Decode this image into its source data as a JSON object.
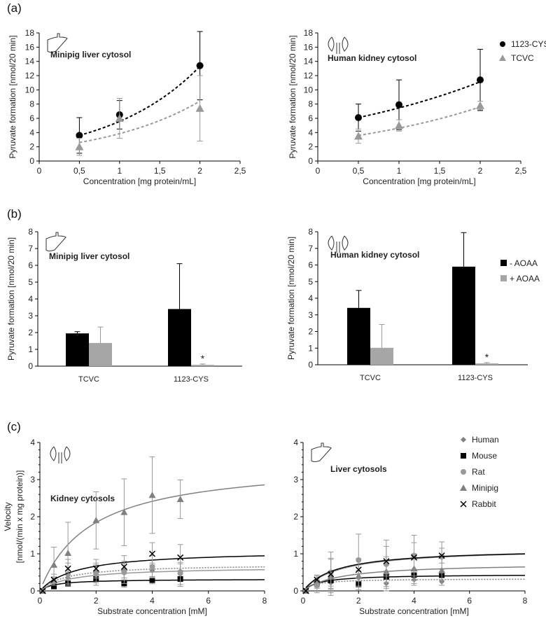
{
  "panels": [
    "(a)",
    "(b)",
    "(c)"
  ],
  "colors": {
    "black": "#000000",
    "grey": "#999999",
    "lightgrey": "#a6a6a6"
  },
  "chart_data": [
    {
      "id": "a-liver",
      "type": "scatter",
      "title": "Minipig liver cytosol",
      "icon": "liver",
      "xlabel": "Concentration [mg protein/mL]",
      "ylabel": "Pyruvate formation [nmol/20 min]",
      "xlim": [
        0,
        2.5
      ],
      "xticks": [
        "0",
        "0,5",
        "1",
        "1,5",
        "2",
        "2,5"
      ],
      "xtickvals": [
        0,
        0.5,
        1,
        1.5,
        2,
        2.5
      ],
      "ylim": [
        0,
        18
      ],
      "yticks": [
        0,
        2,
        4,
        6,
        8,
        10,
        12,
        14,
        16,
        18
      ],
      "series": [
        {
          "name": "1123-CYS",
          "marker": "circle",
          "color": "#000000",
          "x": [
            0.5,
            1,
            2
          ],
          "y": [
            3.6,
            6.5,
            13.4
          ],
          "err": [
            2.5,
            2.0,
            4.8
          ],
          "fit": {
            "kind": "exp",
            "a": 2.33,
            "b": 0.871,
            "from": 0.5,
            "to": 2
          }
        },
        {
          "name": "TCVC",
          "marker": "triangle",
          "color": "#999999",
          "x": [
            0.5,
            1,
            2
          ],
          "y": [
            2.0,
            6.0,
            7.4
          ],
          "err": [
            1.2,
            2.8,
            4.6
          ],
          "fit": {
            "kind": "exp",
            "a": 1.76,
            "b": 0.782,
            "from": 0.5,
            "to": 2
          }
        }
      ]
    },
    {
      "id": "a-kidney",
      "type": "scatter",
      "title": "Human kidney cytosol",
      "icon": "kidney",
      "xlabel": "Concentration  [mg protein/mL]",
      "ylabel": "Pyruvate formation [nmol/20 min]",
      "xlim": [
        0,
        2.5
      ],
      "xticks": [
        "0",
        "0,5",
        "1",
        "1,5",
        "2",
        "2,5"
      ],
      "xtickvals": [
        0,
        0.5,
        1,
        1.5,
        2,
        2.5
      ],
      "ylim": [
        0,
        18
      ],
      "yticks": [
        0,
        2,
        4,
        6,
        8,
        10,
        12,
        14,
        16,
        18
      ],
      "legend": "top-right",
      "series": [
        {
          "name": "1123-CYS",
          "marker": "circle",
          "color": "#000000",
          "x": [
            0.5,
            1,
            2
          ],
          "y": [
            6.1,
            7.9,
            11.4
          ],
          "err": [
            1.9,
            3.5,
            4.3
          ],
          "fit": {
            "kind": "exp",
            "a": 5.0,
            "b": 0.4,
            "from": 0.5,
            "to": 2
          }
        },
        {
          "name": "TCVC",
          "marker": "triangle",
          "color": "#999999",
          "x": [
            0.5,
            1,
            2
          ],
          "y": [
            3.5,
            5.0,
            7.8
          ],
          "err": [
            1.0,
            0.8,
            0.6
          ],
          "fit": {
            "kind": "exp",
            "a": 2.81,
            "b": 0.498,
            "from": 0.5,
            "to": 2
          }
        }
      ]
    },
    {
      "id": "b-liver",
      "type": "bar",
      "title": "Minipig liver cytosol",
      "icon": "liver",
      "ylabel": "Pyruvate formation [nmol/20 min]",
      "categories": [
        "TCVC",
        "1123-CYS"
      ],
      "ylim": [
        0,
        8
      ],
      "yticks": [
        0,
        1,
        2,
        3,
        4,
        5,
        6,
        7,
        8
      ],
      "series": [
        {
          "name": "- AOAA",
          "color": "#000000",
          "values": [
            1.95,
            3.4
          ],
          "err": [
            0.1,
            2.7
          ]
        },
        {
          "name": "+ AOAA",
          "color": "#a6a6a6",
          "values": [
            1.38,
            0.08
          ],
          "err": [
            0.95,
            0.05
          ]
        }
      ],
      "annotations": [
        {
          "category": 1,
          "series": 1,
          "text": "*"
        }
      ]
    },
    {
      "id": "b-kidney",
      "type": "bar",
      "title": "Human kidney cytosol",
      "icon": "kidney",
      "ylabel": "Pyruvate formation [nmol/20 min]",
      "categories": [
        "TCVC",
        "1123-CYS"
      ],
      "ylim": [
        0,
        8
      ],
      "yticks": [
        0,
        1,
        2,
        3,
        4,
        5,
        6,
        7,
        8
      ],
      "legend": "right",
      "series": [
        {
          "name": "- AOAA",
          "color": "#000000",
          "values": [
            3.42,
            5.9
          ],
          "err": [
            1.05,
            2.05
          ]
        },
        {
          "name": "+ AOAA",
          "color": "#a6a6a6",
          "values": [
            1.02,
            0.08
          ],
          "err": [
            1.4,
            0.05
          ]
        }
      ],
      "annotations": [
        {
          "category": 1,
          "series": 1,
          "text": "*"
        }
      ]
    },
    {
      "id": "c-kidney",
      "type": "scatter",
      "title": "Kidney cytosols",
      "icon": "kidney",
      "xlabel": "Substrate concentration [mM]",
      "ylabel": "Velocity",
      "ylabel2": "[nmol/(min x mg protein)]",
      "xlim": [
        0,
        8
      ],
      "xticks": [
        "0",
        "2",
        "4",
        "6",
        "8"
      ],
      "xtickvals": [
        0,
        2,
        4,
        6,
        8
      ],
      "ylim": [
        0,
        4
      ],
      "yticks": [
        0,
        1,
        2,
        3,
        4
      ],
      "series": [
        {
          "name": "Human",
          "marker": "diamond",
          "color": "#808080",
          "x": [
            0.1,
            0.5,
            1,
            2,
            3,
            4,
            5
          ],
          "y": [
            0,
            0.28,
            0.35,
            0.5,
            0.55,
            0.55,
            0.53
          ],
          "err": [
            0,
            0.1,
            0.15,
            0.2,
            0.2,
            0.2,
            0.2
          ],
          "fit": {
            "kind": "mm",
            "vmax": 0.72,
            "km": 0.9,
            "dash": true
          }
        },
        {
          "name": "Mouse",
          "marker": "square",
          "color": "#000000",
          "x": [
            0.1,
            0.5,
            1,
            2,
            3,
            4,
            5
          ],
          "y": [
            0,
            0.12,
            0.2,
            0.32,
            0.2,
            0.29,
            0.32
          ],
          "err": [
            0,
            0.05,
            0.08,
            0.1,
            0.1,
            0.1,
            0.2
          ],
          "fit": {
            "kind": "mm",
            "vmax": 0.32,
            "km": 0.5
          }
        },
        {
          "name": "Rat",
          "marker": "circle",
          "color": "#999999",
          "x": [
            0.1,
            0.5,
            1,
            2,
            3,
            4,
            5
          ],
          "y": [
            0,
            0.25,
            0.45,
            0.45,
            0.5,
            0.65,
            0.47
          ],
          "err": [
            0,
            0.1,
            0.3,
            0.3,
            0.3,
            0.3,
            0.3
          ],
          "fit": {
            "kind": "mm",
            "vmax": 0.65,
            "km": 1.1
          }
        },
        {
          "name": "Minipig",
          "marker": "triangle",
          "color": "#808080",
          "x": [
            0.1,
            0.5,
            1,
            2,
            3,
            4,
            5
          ],
          "y": [
            0,
            0.7,
            1.02,
            1.9,
            2.12,
            2.58,
            2.47
          ],
          "err": [
            0,
            0.48,
            0.83,
            0.77,
            0.9,
            1.03,
            0.52
          ],
          "fit": {
            "kind": "mm",
            "vmax": 3.5,
            "km": 1.8
          }
        },
        {
          "name": "Rabbit",
          "marker": "cross",
          "color": "#000000",
          "x": [
            0.1,
            0.5,
            1,
            2,
            3,
            4,
            5
          ],
          "y": [
            0,
            0.3,
            0.6,
            0.6,
            0.65,
            1.0,
            0.9
          ],
          "err": [
            0,
            0.15,
            0.25,
            0.25,
            0.3,
            0.3,
            0.35
          ],
          "fit": {
            "kind": "mm",
            "vmax": 1.1,
            "km": 1.3
          }
        }
      ]
    },
    {
      "id": "c-liver",
      "type": "scatter",
      "title": "Liver cytosols",
      "icon": "liver",
      "xlabel": "Substrate concentration [mM]",
      "xlim": [
        0,
        8
      ],
      "xticks": [
        "0",
        "2",
        "4",
        "6",
        "8"
      ],
      "xtickvals": [
        0,
        2,
        4,
        6,
        8
      ],
      "ylim": [
        0,
        4
      ],
      "yticks": [
        0,
        1,
        2,
        3,
        4
      ],
      "legend": "top-right",
      "series": [
        {
          "name": "Human",
          "marker": "diamond",
          "color": "#808080",
          "x": [
            0.1,
            0.5,
            1,
            2,
            3,
            4,
            5
          ],
          "y": [
            0,
            0.17,
            0.22,
            0.35,
            0.2,
            0.3,
            0.25
          ],
          "err": [
            0,
            0.1,
            0.15,
            0.2,
            0.2,
            0.15,
            0.1
          ],
          "fit": {
            "kind": "mm",
            "vmax": 0.33,
            "km": 0.4,
            "dash": true
          }
        },
        {
          "name": "Mouse",
          "marker": "square",
          "color": "#000000",
          "x": [
            0.1,
            0.5,
            1,
            2,
            3,
            4,
            5
          ],
          "y": [
            0,
            0.2,
            0.28,
            0.18,
            0.38,
            0.43,
            0.43
          ],
          "err": [
            0,
            0.1,
            0.15,
            0.15,
            0.15,
            0.15,
            0.15
          ],
          "fit": {
            "kind": "mm",
            "vmax": 0.45,
            "km": 0.6
          }
        },
        {
          "name": "Rat",
          "marker": "circle",
          "color": "#999999",
          "x": [
            0.1,
            0.5,
            1,
            2,
            3,
            4,
            5
          ],
          "y": [
            0,
            0.15,
            0.5,
            0.83,
            0.72,
            0.95,
            0.92
          ],
          "err": [
            0,
            0.2,
            0.55,
            0.7,
            0.65,
            0.55,
            0.4
          ],
          "fit": {
            "kind": "mm",
            "vmax": 1.15,
            "km": 1.3
          }
        },
        {
          "name": "Minipig",
          "marker": "triangle",
          "color": "#808080",
          "x": [
            0.1,
            0.5,
            1,
            2,
            3,
            4,
            5
          ],
          "y": [
            0,
            0.28,
            0.38,
            0.4,
            0.52,
            0.6,
            0.55
          ],
          "err": [
            0,
            0.15,
            0.5,
            0.3,
            0.4,
            0.4,
            0.4
          ],
          "fit": {
            "kind": "mm",
            "vmax": 0.75,
            "km": 1.3
          }
        },
        {
          "name": "Rabbit",
          "marker": "cross",
          "color": "#000000",
          "x": [
            0.1,
            0.5,
            1,
            2,
            3,
            4,
            5
          ],
          "y": [
            0,
            0.3,
            0.45,
            0.57,
            0.8,
            0.9,
            0.95
          ],
          "err": [
            0,
            0.1,
            0.4,
            0.3,
            0.4,
            0.4,
            0.2
          ],
          "fit": {
            "kind": "mm",
            "vmax": 1.15,
            "km": 1.2
          }
        }
      ]
    }
  ]
}
